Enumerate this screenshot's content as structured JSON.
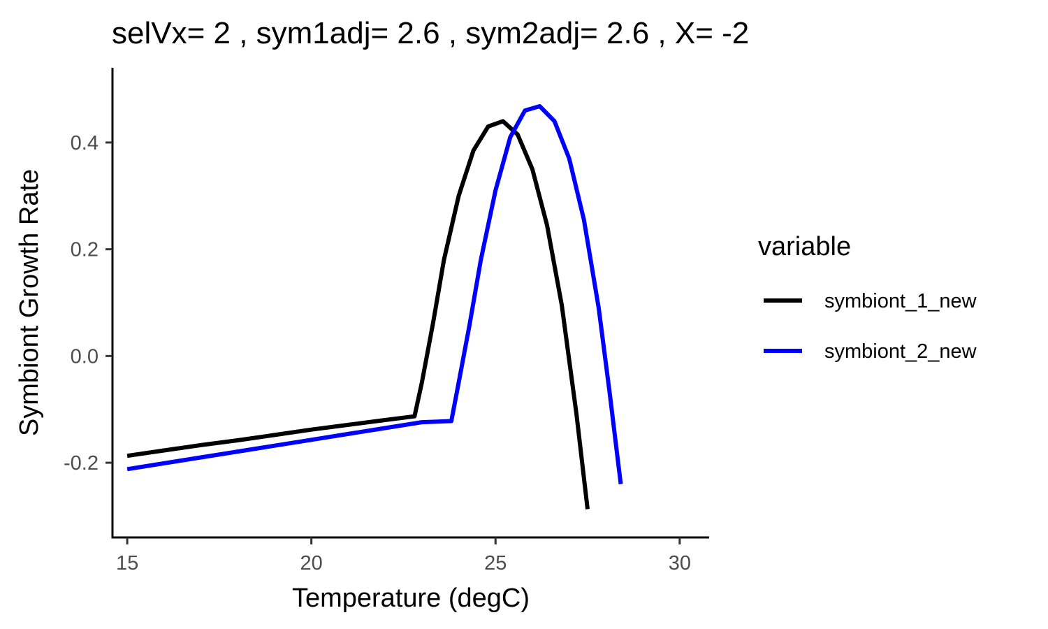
{
  "chart_data": {
    "type": "line",
    "title": "selVx= 2 , sym1adj= 2.6 , sym2adj= 2.6 , X= -2",
    "xlabel": "Temperature (degC)",
    "ylabel": "Symbiont Growth Rate",
    "xlim": [
      14.6,
      30.8
    ],
    "ylim": [
      -0.34,
      0.54
    ],
    "xticks": [
      15,
      20,
      25,
      30
    ],
    "xtick_labels": [
      "15",
      "20",
      "25",
      "30"
    ],
    "yticks": [
      -0.2,
      0.0,
      0.2,
      0.4
    ],
    "ytick_labels": [
      "-0.2",
      "0.0",
      "0.2",
      "0.4"
    ],
    "grid": false,
    "legend": {
      "title": "variable",
      "position": "right"
    },
    "series": [
      {
        "name": "symbiont_1_new",
        "color": "#000000",
        "x": [
          15,
          16,
          17,
          18,
          19,
          20,
          21,
          22,
          22.8,
          23.0,
          23.3,
          23.6,
          24.0,
          24.4,
          24.8,
          25.2,
          25.6,
          26.0,
          26.4,
          26.8,
          27.2,
          27.5
        ],
        "y": [
          -0.187,
          -0.177,
          -0.167,
          -0.158,
          -0.148,
          -0.138,
          -0.129,
          -0.12,
          -0.113,
          -0.05,
          0.06,
          0.18,
          0.3,
          0.385,
          0.43,
          0.44,
          0.415,
          0.35,
          0.245,
          0.095,
          -0.11,
          -0.287
        ]
      },
      {
        "name": "symbiont_2_new",
        "color": "#0000ff",
        "x": [
          15,
          16,
          17,
          18,
          19,
          20,
          21,
          22,
          23,
          23.8,
          24.0,
          24.3,
          24.6,
          25.0,
          25.4,
          25.8,
          26.2,
          26.6,
          27.0,
          27.4,
          27.8,
          28.1,
          28.4
        ],
        "y": [
          -0.212,
          -0.201,
          -0.19,
          -0.179,
          -0.168,
          -0.157,
          -0.146,
          -0.135,
          -0.124,
          -0.122,
          -0.05,
          0.06,
          0.18,
          0.31,
          0.41,
          0.46,
          0.468,
          0.44,
          0.37,
          0.255,
          0.09,
          -0.07,
          -0.24
        ]
      }
    ]
  }
}
